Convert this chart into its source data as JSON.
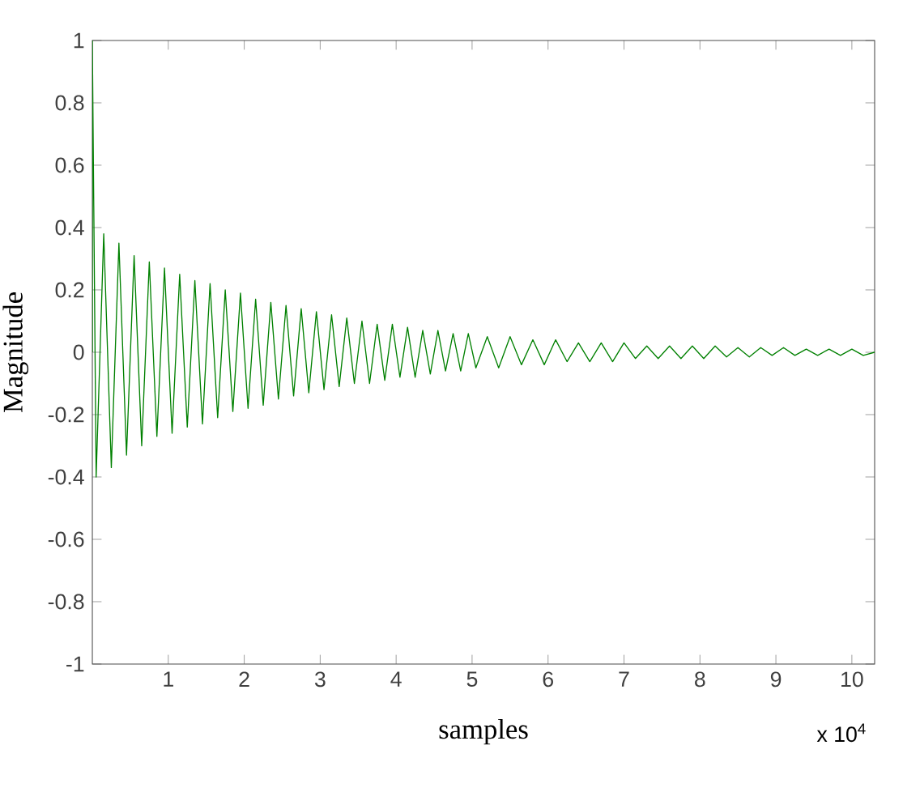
{
  "chart_data": {
    "type": "line",
    "xlabel": "samples",
    "ylabel": "Magnitude",
    "annotations": [
      "x 10$^{4}$"
    ],
    "x": [
      0,
      0,
      0.05,
      0.15,
      0.25,
      0.35,
      0.45,
      0.55,
      0.65,
      0.75,
      0.85,
      0.95,
      1.05,
      1.15,
      1.25,
      1.35,
      1.45,
      1.55,
      1.65,
      1.75,
      1.85,
      1.95,
      2.05,
      2.15,
      2.25,
      2.35,
      2.45,
      2.55,
      2.65,
      2.75,
      2.85,
      2.95,
      3.05,
      3.15,
      3.25,
      3.35,
      3.45,
      3.55,
      3.65,
      3.75,
      3.85,
      3.95,
      4.05,
      4.15,
      4.25,
      4.35,
      4.45,
      4.55,
      4.65,
      4.75,
      4.85,
      4.95,
      5.05,
      5.2,
      5.35,
      5.5,
      5.65,
      5.8,
      5.95,
      6.1,
      6.25,
      6.4,
      6.55,
      6.7,
      6.85,
      7.0,
      7.15,
      7.3,
      7.45,
      7.6,
      7.75,
      7.9,
      8.05,
      8.2,
      8.35,
      8.5,
      8.65,
      8.8,
      8.95,
      9.1,
      9.25,
      9.4,
      9.55,
      9.7,
      9.85,
      10.0,
      10.15,
      10.3
    ],
    "series": [
      {
        "color": "#008000",
        "values": [
          0,
          1,
          -0.4,
          0.38,
          -0.37,
          0.35,
          -0.33,
          0.31,
          -0.3,
          0.29,
          -0.27,
          0.27,
          -0.26,
          0.25,
          -0.24,
          0.23,
          -0.23,
          0.22,
          -0.21,
          0.2,
          -0.19,
          0.19,
          -0.18,
          0.17,
          -0.17,
          0.16,
          -0.15,
          0.15,
          -0.14,
          0.14,
          -0.13,
          0.13,
          -0.12,
          0.12,
          -0.11,
          0.11,
          -0.1,
          0.1,
          -0.1,
          0.09,
          -0.09,
          0.09,
          -0.08,
          0.08,
          -0.08,
          0.07,
          -0.07,
          0.07,
          -0.06,
          0.06,
          -0.06,
          0.06,
          -0.05,
          0.05,
          -0.05,
          0.05,
          -0.04,
          0.04,
          -0.04,
          0.04,
          -0.03,
          0.03,
          -0.03,
          0.03,
          -0.03,
          0.03,
          -0.02,
          0.02,
          -0.02,
          0.02,
          -0.02,
          0.02,
          -0.02,
          0.02,
          -0.015,
          0.015,
          -0.015,
          0.015,
          -0.01,
          0.015,
          -0.01,
          0.01,
          -0.01,
          0.01,
          -0.01,
          0.01,
          -0.01,
          0
        ]
      }
    ],
    "xlim": [
      0,
      10.3
    ],
    "ylim": [
      -1,
      1
    ],
    "xticks": [
      1,
      2,
      3,
      4,
      5,
      6,
      7,
      8,
      9,
      10
    ],
    "yticks": [
      -1,
      -0.8,
      -0.6,
      -0.4,
      -0.2,
      0,
      0.2,
      0.4,
      0.6,
      0.8,
      1
    ]
  }
}
